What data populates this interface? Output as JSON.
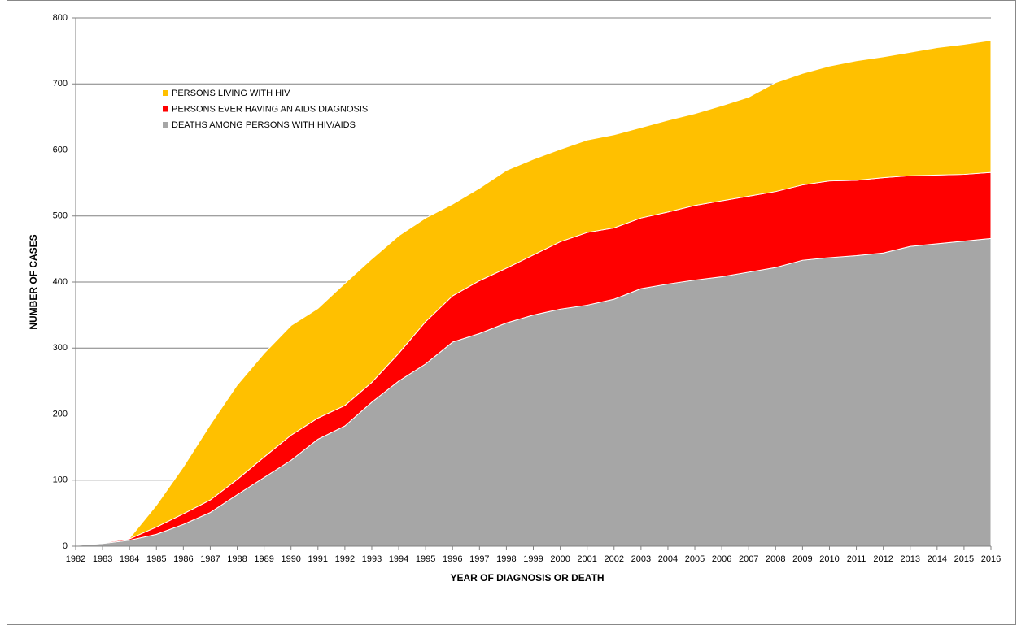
{
  "chart_data": {
    "type": "stacked-area",
    "x_label": "YEAR OF DIAGNOSIS OR DEATH",
    "y_label": "NUMBER OF CASES",
    "x": [
      1982,
      1983,
      1984,
      1985,
      1986,
      1987,
      1988,
      1989,
      1990,
      1991,
      1992,
      1993,
      1994,
      1995,
      1996,
      1997,
      1998,
      1999,
      2000,
      2001,
      2002,
      2003,
      2004,
      2005,
      2006,
      2007,
      2008,
      2009,
      2010,
      2011,
      2012,
      2013,
      2014,
      2015,
      2016
    ],
    "xlim": [
      1982,
      2016
    ],
    "xticks": [
      1982,
      1983,
      1984,
      1985,
      1986,
      1987,
      1988,
      1989,
      1990,
      1991,
      1992,
      1993,
      1994,
      1995,
      1996,
      1997,
      1998,
      1999,
      2000,
      2001,
      2002,
      2003,
      2004,
      2005,
      2006,
      2007,
      2008,
      2009,
      2010,
      2011,
      2012,
      2013,
      2014,
      2015,
      2016
    ],
    "ylim": [
      0,
      800
    ],
    "yticks": [
      0,
      100,
      200,
      300,
      400,
      500,
      600,
      700,
      800
    ],
    "grid": true,
    "legend_position": "upper-left",
    "series": [
      {
        "name": "PERSONS LIVING WITH HIV",
        "color": "#ffc000",
        "values": [
          0,
          0,
          1,
          33,
          71,
          114,
          143,
          157,
          166,
          166,
          185,
          187,
          178,
          157,
          139,
          140,
          148,
          145,
          140,
          140,
          141,
          137,
          139,
          139,
          144,
          150,
          165,
          169,
          174,
          181,
          183,
          187,
          193,
          197,
          200
        ]
      },
      {
        "name": "PERSONS EVER HAVING AN AIDS DIAGNOSIS",
        "color": "#ff0000",
        "values": [
          0,
          1,
          2,
          11,
          16,
          19,
          23,
          31,
          38,
          32,
          31,
          30,
          42,
          64,
          70,
          80,
          83,
          91,
          102,
          110,
          108,
          107,
          109,
          113,
          115,
          115,
          115,
          114,
          116,
          114,
          114,
          107,
          104,
          101,
          100
        ]
      },
      {
        "name": "DEATHS AMONG PERSONS WITH HIV/AIDS",
        "color": "#a6a6a6",
        "values": [
          1,
          4,
          9,
          18,
          33,
          51,
          78,
          104,
          130,
          162,
          182,
          218,
          250,
          276,
          309,
          322,
          338,
          350,
          359,
          365,
          374,
          390,
          397,
          403,
          408,
          415,
          422,
          433,
          437,
          440,
          444,
          454,
          458,
          462,
          466
        ]
      }
    ]
  }
}
